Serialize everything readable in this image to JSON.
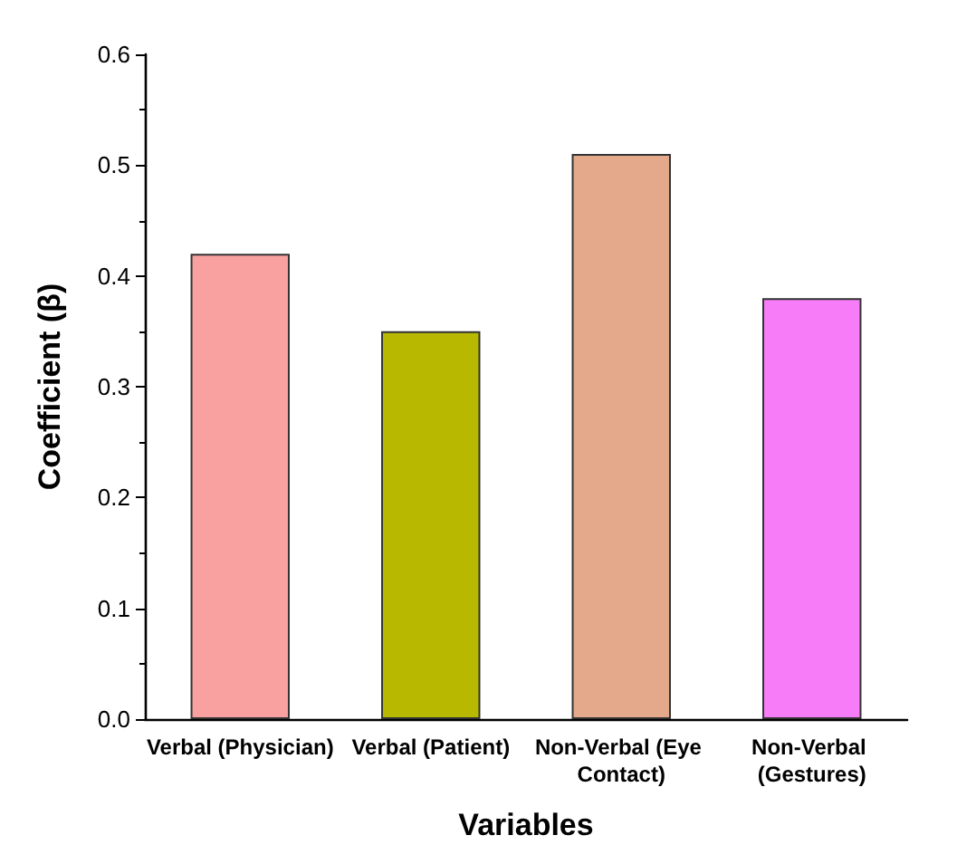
{
  "chart_data": {
    "type": "bar",
    "xlabel": "Variables",
    "ylabel": "Coefficient (β)",
    "categories": [
      "Verbal (Physician)",
      "Verbal (Patient)",
      "Non-Verbal (Eye Contact)",
      "Non-Verbal (Gestures)"
    ],
    "values": [
      0.42,
      0.35,
      0.51,
      0.38
    ],
    "colors": [
      "#f9a0a0",
      "#b8b800",
      "#e3a98a",
      "#f77cf7"
    ],
    "ylim": [
      0,
      0.6
    ],
    "yticks": [
      {
        "value": 0,
        "label": "0.0"
      },
      {
        "value": 0.1,
        "label": "0.1"
      },
      {
        "value": 0.2,
        "label": "0.2"
      },
      {
        "value": 0.3,
        "label": "0.3"
      },
      {
        "value": 0.4,
        "label": "0.4"
      },
      {
        "value": 0.5,
        "label": "0.5"
      },
      {
        "value": 0.6,
        "label": "0.6"
      }
    ],
    "grid": false
  }
}
